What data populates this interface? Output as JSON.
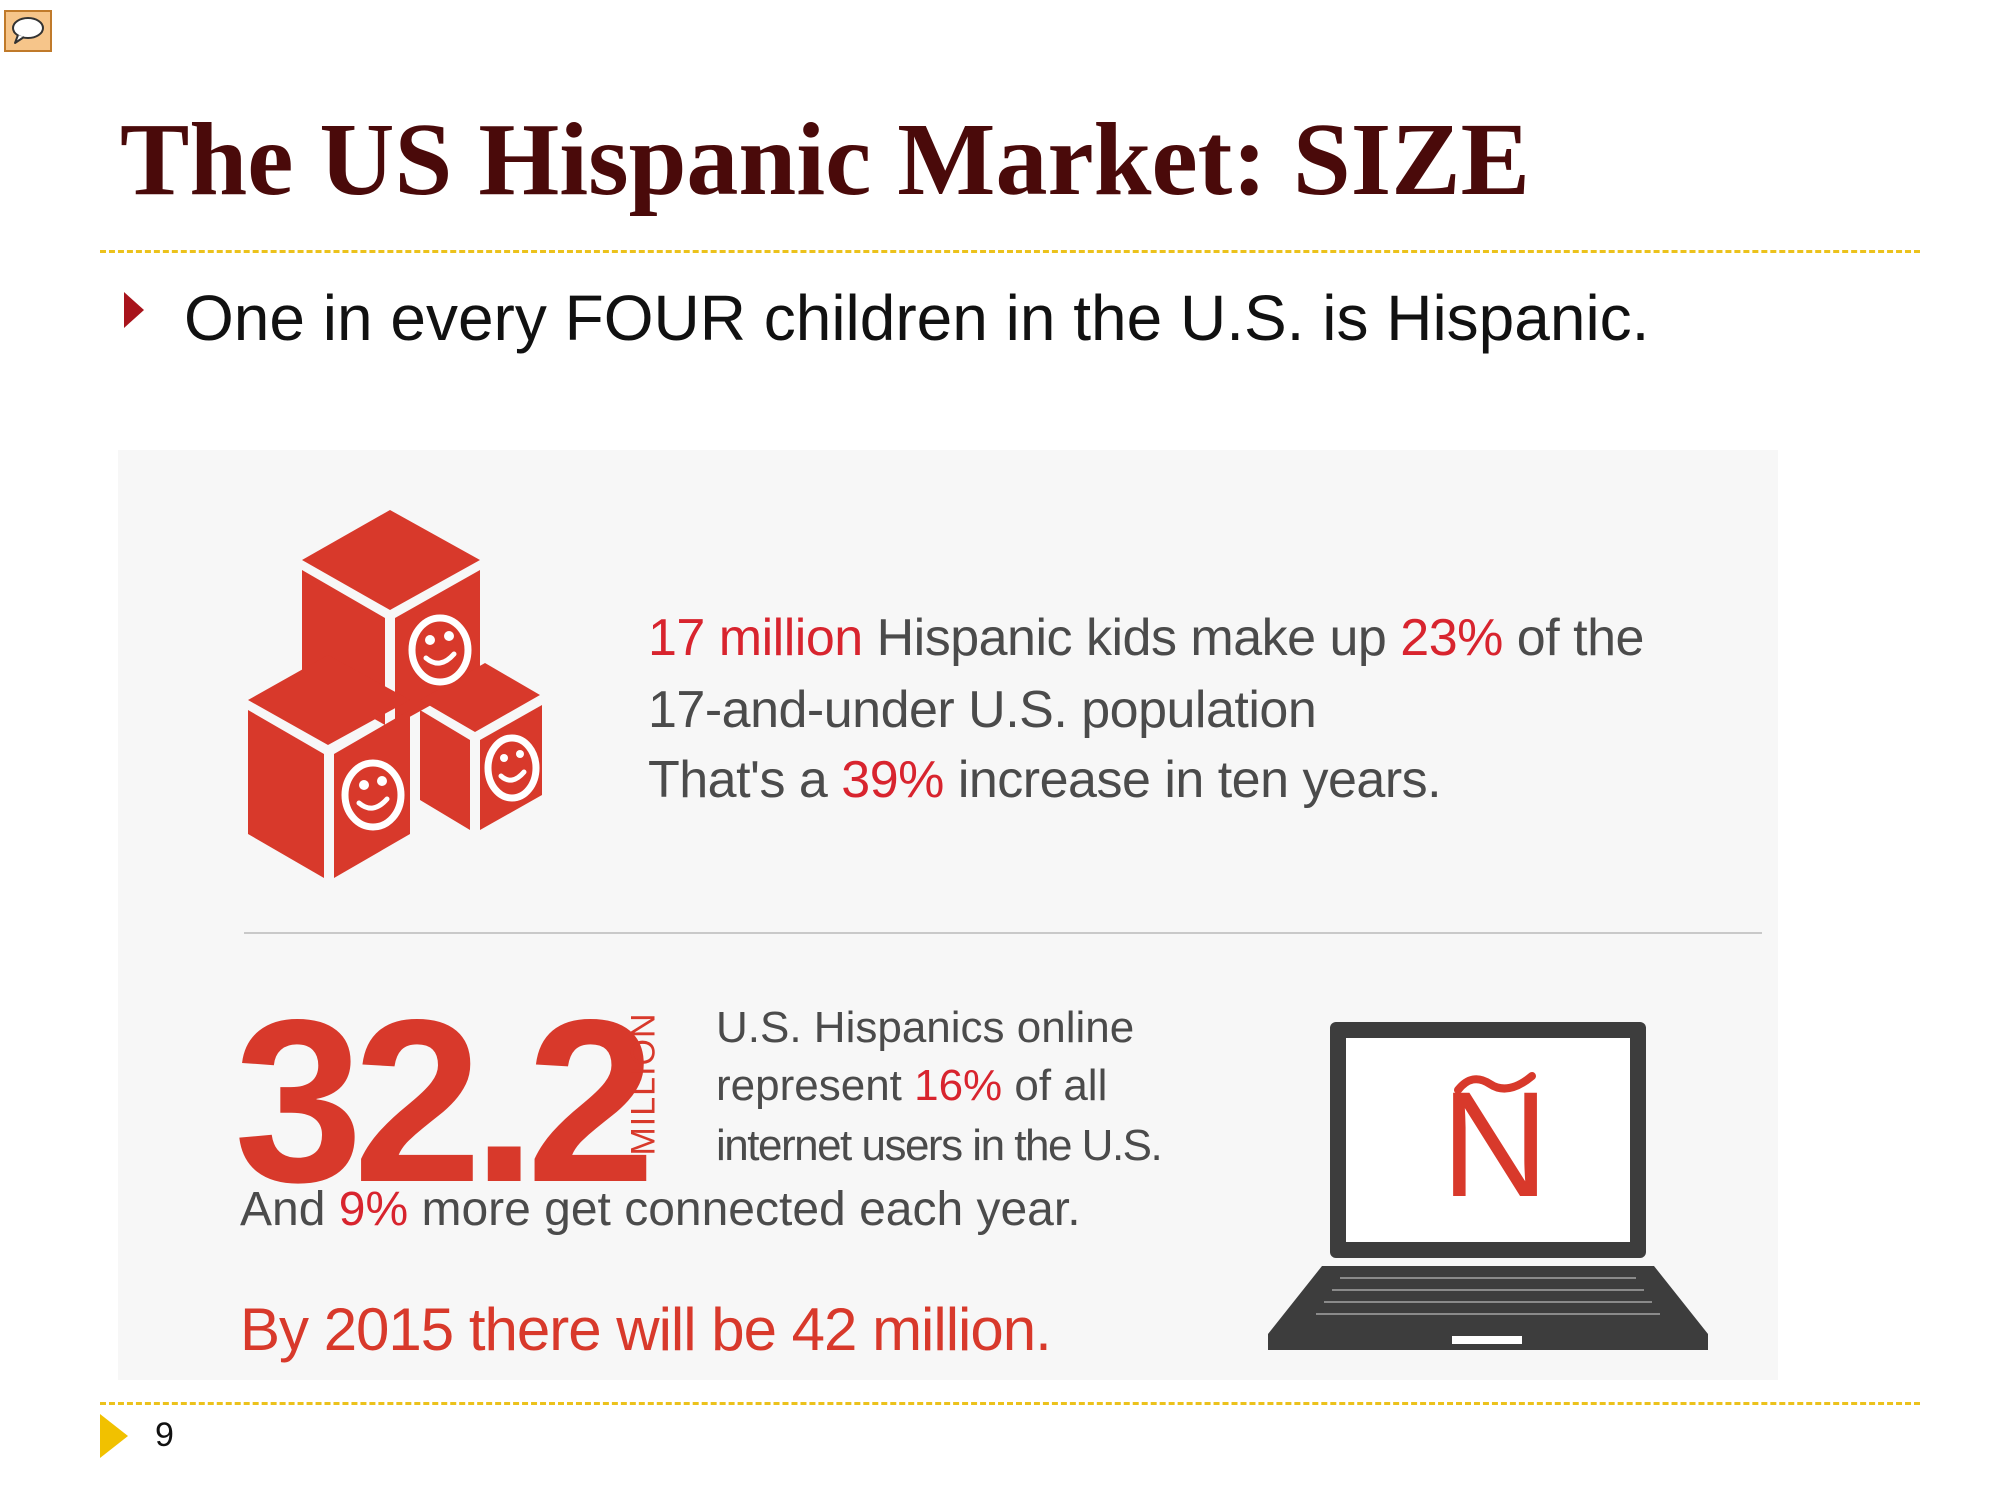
{
  "slide": {
    "title": "The US Hispanic Market: SIZE",
    "bullet": "One in every FOUR children in the U.S. is Hispanic.",
    "page_number": "9"
  },
  "infographic": {
    "stat1": {
      "line1_hl1": "17 million",
      "line1_mid": " Hispanic kids make up ",
      "line1_hl2": "23%",
      "line1_end": " of the",
      "line2": "17-and-under U.S. population",
      "line3_pre": "That's a ",
      "line3_hl": "39%",
      "line3_end": " increase in ten years."
    },
    "stat2": {
      "big_number": "32.2",
      "unit_label": "MILLION",
      "line1": "U.S. Hispanics online",
      "line2_pre": "represent ",
      "line2_hl": "16%",
      "line2_end": " of all",
      "line3": "internet users in the U.S.",
      "connected_pre": "And ",
      "connected_hl": "9%",
      "connected_end": " more get connected each year.",
      "projection": "By 2015 there will be 42 million."
    },
    "laptop_letter": "N",
    "icons": [
      "comment-icon",
      "blocks-icon",
      "laptop-icon",
      "play-icon"
    ]
  },
  "colors": {
    "title": "#4a0a0a",
    "accent_red": "#d8242e",
    "infographic_red": "#d8392b",
    "rule_yellow": "#ecc21c",
    "body_gray": "#4b4b4b"
  }
}
